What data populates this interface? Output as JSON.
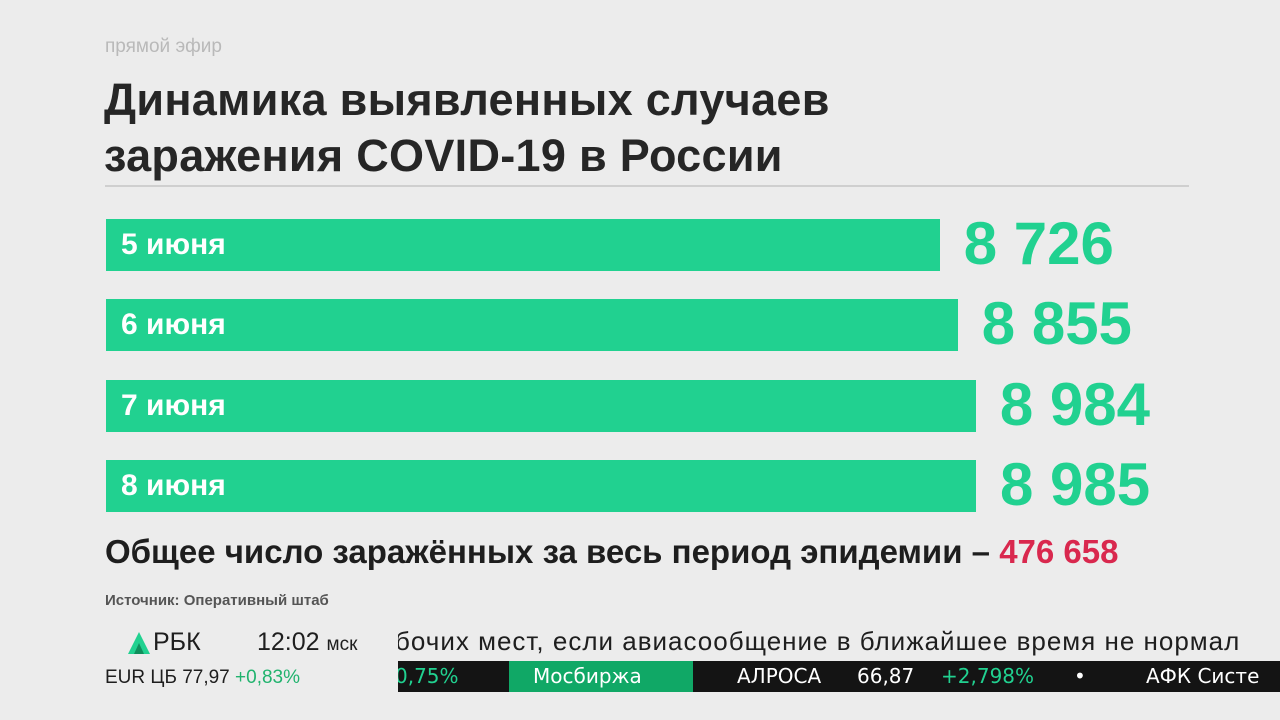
{
  "live_label": "прямой эфир",
  "title_line1": "Динамика выявленных случаев",
  "title_line2": "заражения COVID-19 в России",
  "chart_data": {
    "type": "bar",
    "orientation": "horizontal",
    "categories": [
      "5 июня",
      "6 июня",
      "7 июня",
      "8 июня"
    ],
    "values": [
      8726,
      8855,
      8984,
      8985
    ],
    "value_labels": [
      "8 726",
      "8 855",
      "8 984",
      "8 985"
    ],
    "title": "Динамика выявленных случаев заражения COVID-19 в России",
    "color": "#21d190"
  },
  "total": {
    "label": "Общее число заражённых за весь период эпидемии –",
    "value": "476 658",
    "value_color": "#d9284e"
  },
  "source": "Источник: Оперативный штаб",
  "broadcast": {
    "logo": "РБК",
    "time": "12:02",
    "timezone": "мск",
    "fx_label": "EUR ЦБ 77,97",
    "fx_change": "+0,83%",
    "news_ticker": "бочих мест, если авиасообщение в ближайшее время не нормал",
    "quotes": {
      "prev_change": "0,75%",
      "section": "Мосбиржа",
      "ticker1_name": "АЛРОСА",
      "ticker1_price": "66,87",
      "ticker1_change": "+2,798%",
      "separator": "•",
      "ticker2_name": "АФК Систе"
    }
  }
}
